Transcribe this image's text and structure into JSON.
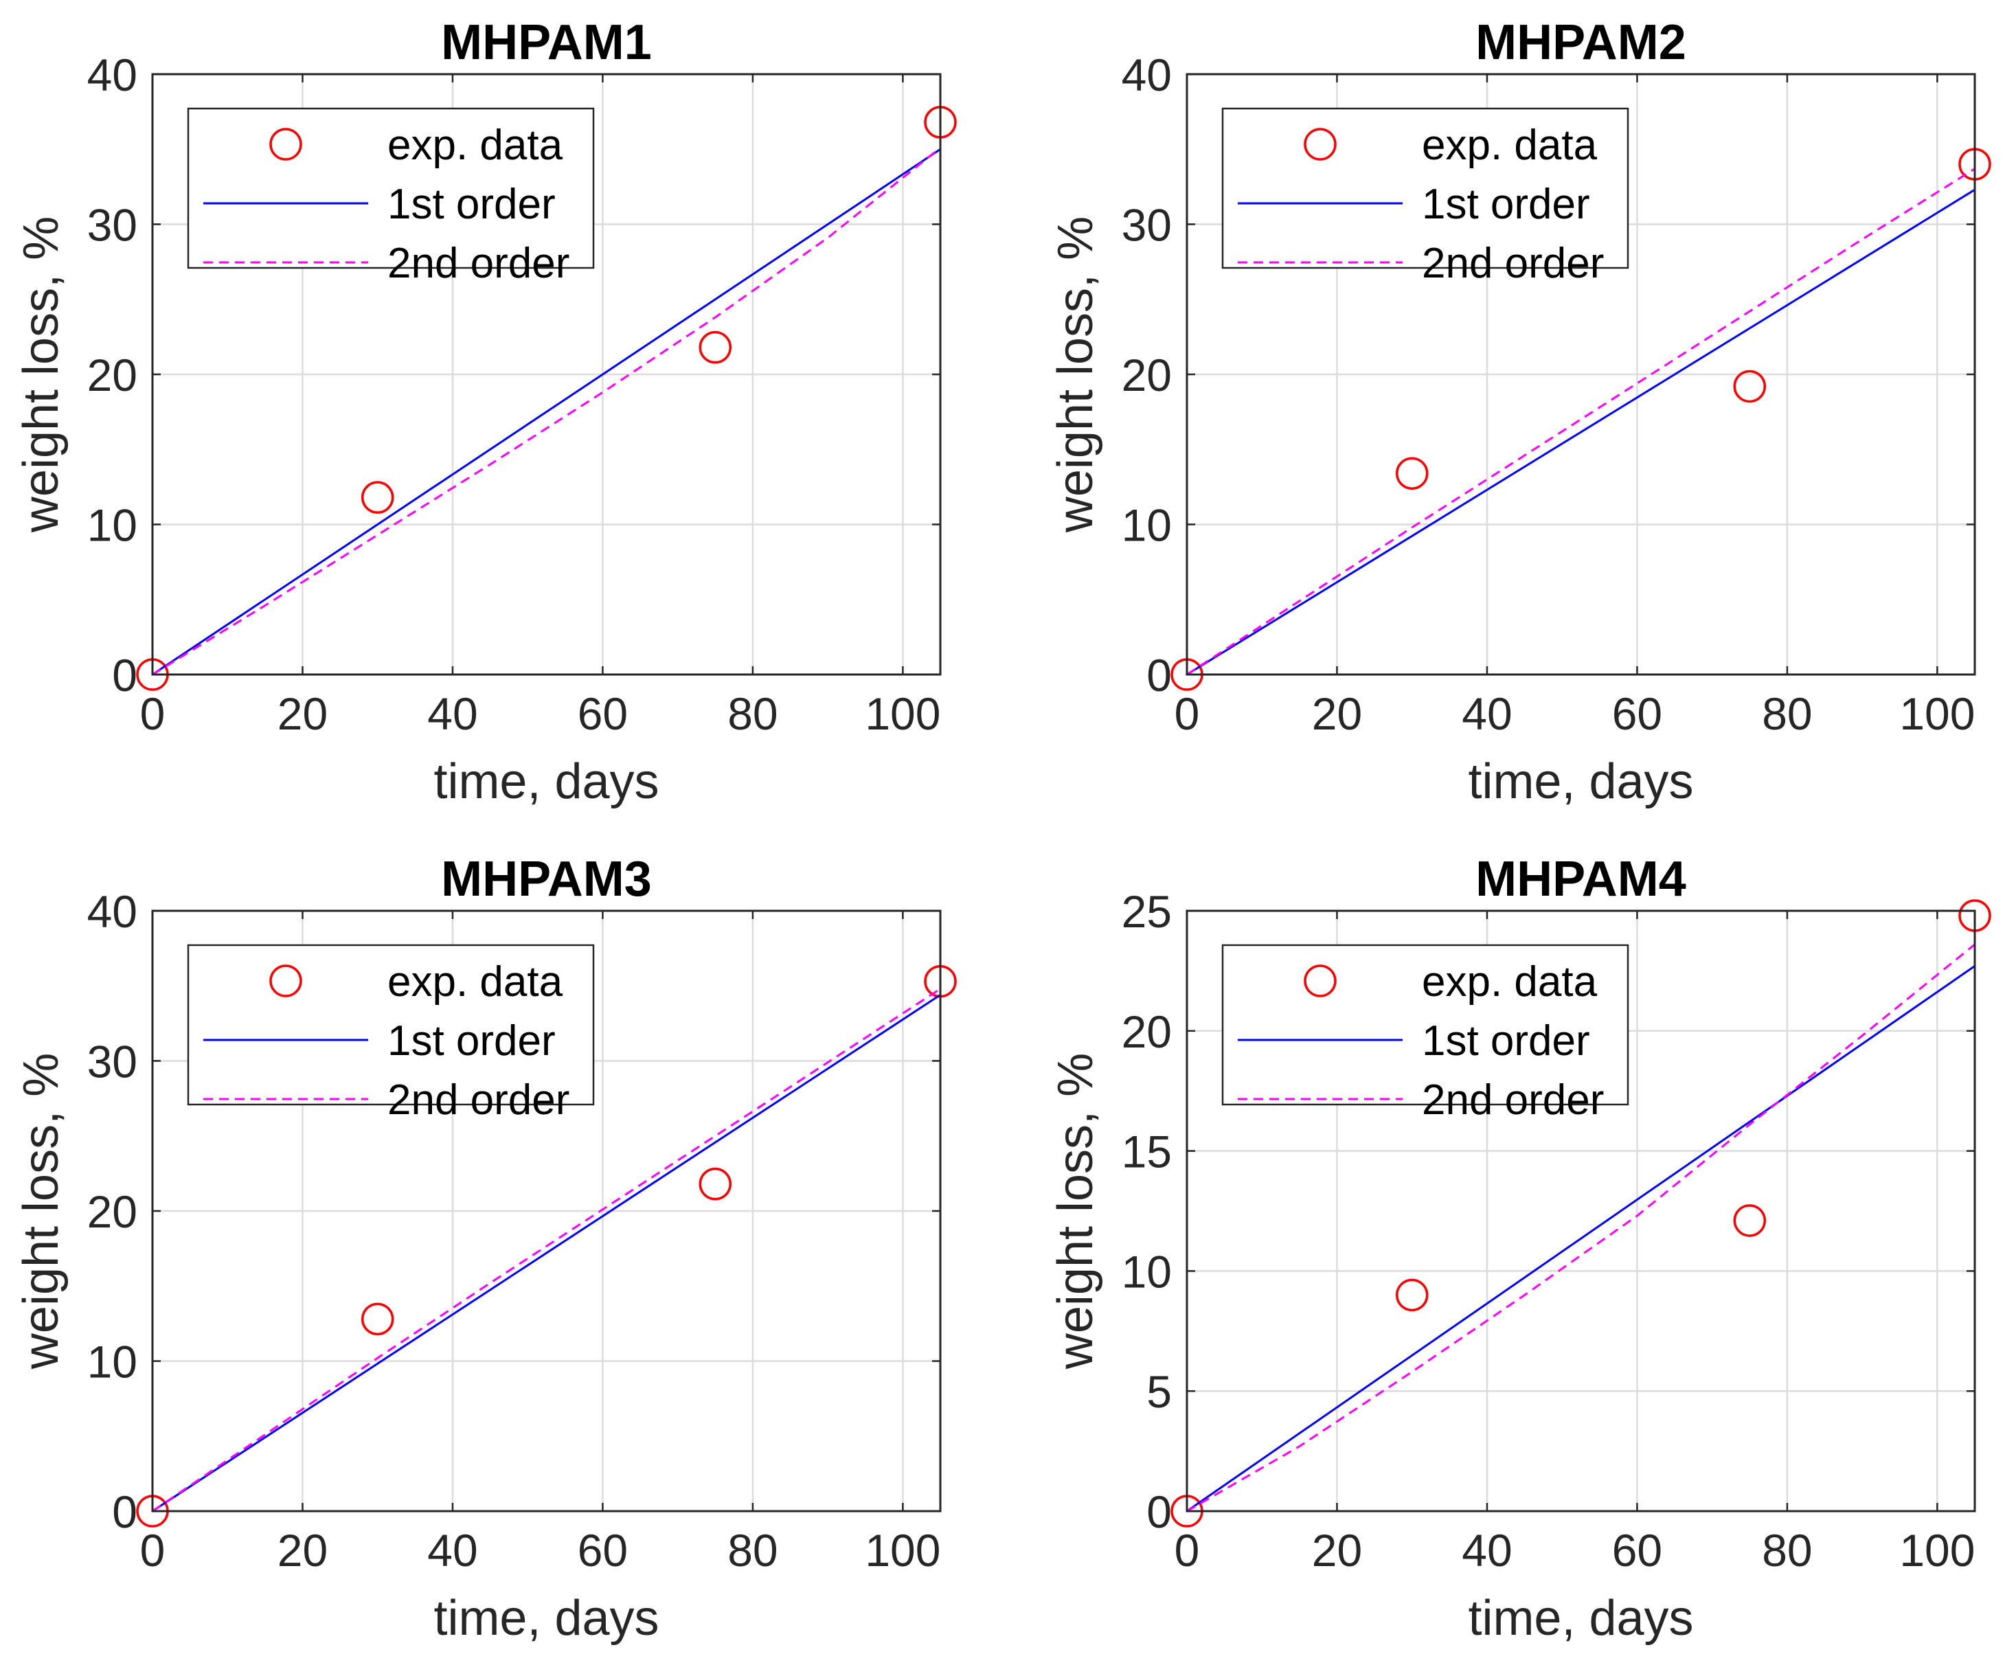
{
  "chart_data": [
    {
      "type": "line",
      "title": "MHPAM1",
      "xlabel": "time, days",
      "ylabel": "weight loss, %",
      "xlim": [
        0,
        105
      ],
      "ylim": [
        0,
        40
      ],
      "xticks": [
        0,
        20,
        40,
        60,
        80,
        100
      ],
      "yticks": [
        0,
        10,
        20,
        30,
        40
      ],
      "grid": true,
      "legend_position": "top-left",
      "series": [
        {
          "name": "exp. data",
          "style": "markers",
          "color": "#ff0000",
          "x": [
            0,
            30,
            75,
            105
          ],
          "y": [
            0,
            11.8,
            21.8,
            36.8
          ]
        },
        {
          "name": "1st order",
          "style": "solid",
          "color": "#0000ff",
          "x": [
            0,
            105
          ],
          "y": [
            0,
            35.0
          ]
        },
        {
          "name": "2nd order",
          "style": "dashed",
          "color": "#ff00ff",
          "x": [
            0,
            15,
            30,
            45,
            60,
            75,
            90,
            105
          ],
          "y": [
            0,
            4.6,
            9.3,
            14.0,
            18.8,
            23.8,
            29.1,
            35.1
          ]
        }
      ]
    },
    {
      "type": "line",
      "title": "MHPAM2",
      "xlabel": "time, days",
      "ylabel": "weight loss, %",
      "xlim": [
        0,
        105
      ],
      "ylim": [
        0,
        40
      ],
      "xticks": [
        0,
        20,
        40,
        60,
        80,
        100
      ],
      "yticks": [
        0,
        10,
        20,
        30,
        40
      ],
      "grid": true,
      "legend_position": "top-left",
      "series": [
        {
          "name": "exp. data",
          "style": "markers",
          "color": "#ff0000",
          "x": [
            0,
            30,
            75,
            105
          ],
          "y": [
            0,
            13.4,
            19.2,
            34.0
          ]
        },
        {
          "name": "1st order",
          "style": "solid",
          "color": "#0000ff",
          "x": [
            0,
            105
          ],
          "y": [
            0,
            32.3
          ]
        },
        {
          "name": "2nd order",
          "style": "dashed",
          "color": "#ff00ff",
          "x": [
            0,
            15,
            30,
            45,
            60,
            75,
            90,
            105
          ],
          "y": [
            0,
            4.9,
            9.8,
            14.6,
            19.4,
            24.2,
            29.0,
            33.7
          ]
        }
      ]
    },
    {
      "type": "line",
      "title": "MHPAM3",
      "xlabel": "time, days",
      "ylabel": "weight loss, %",
      "xlim": [
        0,
        105
      ],
      "ylim": [
        0,
        40
      ],
      "xticks": [
        0,
        20,
        40,
        60,
        80,
        100
      ],
      "yticks": [
        0,
        10,
        20,
        30,
        40
      ],
      "grid": true,
      "legend_position": "top-left",
      "series": [
        {
          "name": "exp. data",
          "style": "markers",
          "color": "#ff0000",
          "x": [
            0,
            30,
            75,
            105
          ],
          "y": [
            0,
            12.8,
            21.8,
            35.3
          ]
        },
        {
          "name": "1st order",
          "style": "solid",
          "color": "#0000ff",
          "x": [
            0,
            105
          ],
          "y": [
            0,
            34.4
          ]
        },
        {
          "name": "2nd order",
          "style": "dashed",
          "color": "#ff00ff",
          "x": [
            0,
            15,
            30,
            45,
            60,
            75,
            90,
            105
          ],
          "y": [
            0,
            5.1,
            10.2,
            15.2,
            20.1,
            25.0,
            29.9,
            34.8
          ]
        }
      ]
    },
    {
      "type": "line",
      "title": "MHPAM4",
      "xlabel": "time, days",
      "ylabel": "weight loss, %",
      "xlim": [
        0,
        105
      ],
      "ylim": [
        0,
        25
      ],
      "xticks": [
        0,
        20,
        40,
        60,
        80,
        100
      ],
      "yticks": [
        0,
        5,
        10,
        15,
        20,
        25
      ],
      "grid": true,
      "legend_position": "top-left",
      "series": [
        {
          "name": "exp. data",
          "style": "markers",
          "color": "#ff0000",
          "x": [
            0,
            30,
            75,
            105
          ],
          "y": [
            0,
            9.0,
            12.1,
            24.8
          ]
        },
        {
          "name": "1st order",
          "style": "solid",
          "color": "#0000ff",
          "x": [
            0,
            105
          ],
          "y": [
            0,
            22.7
          ]
        },
        {
          "name": "2nd order",
          "style": "dashed",
          "color": "#ff00ff",
          "x": [
            0,
            15,
            30,
            45,
            60,
            75,
            90,
            105
          ],
          "y": [
            0,
            2.7,
            5.8,
            9.0,
            12.3,
            16.1,
            19.8,
            23.6
          ]
        }
      ]
    }
  ]
}
